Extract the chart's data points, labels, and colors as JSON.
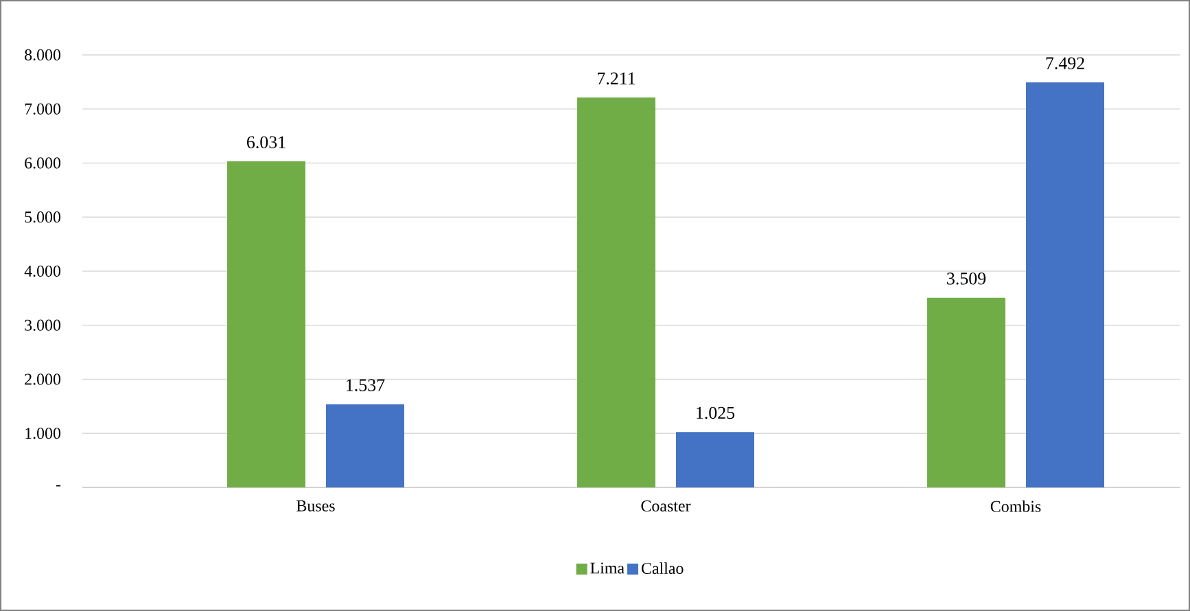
{
  "chart_data": {
    "type": "bar",
    "categories": [
      "Buses",
      "Coaster",
      "Combis"
    ],
    "series": [
      {
        "name": "Lima",
        "color": "#70ad47",
        "values": [
          6031,
          7211,
          3509
        ],
        "value_labels": [
          "6.031",
          "7.211",
          "3.509"
        ]
      },
      {
        "name": "Callao",
        "color": "#4472c4",
        "values": [
          1537,
          1025,
          7492
        ],
        "value_labels": [
          "1.537",
          "1.025",
          "7.492"
        ]
      }
    ],
    "ylim": [
      0,
      8000
    ],
    "yticks": [
      {
        "value": 0,
        "label": "-"
      },
      {
        "value": 1000,
        "label": "1.000"
      },
      {
        "value": 2000,
        "label": "2.000"
      },
      {
        "value": 3000,
        "label": "3.000"
      },
      {
        "value": 4000,
        "label": "4.000"
      },
      {
        "value": 5000,
        "label": "5.000"
      },
      {
        "value": 6000,
        "label": "6.000"
      },
      {
        "value": 7000,
        "label": "7.000"
      },
      {
        "value": 8000,
        "label": "8.000"
      }
    ],
    "grid": "y",
    "legend": "bottom"
  }
}
